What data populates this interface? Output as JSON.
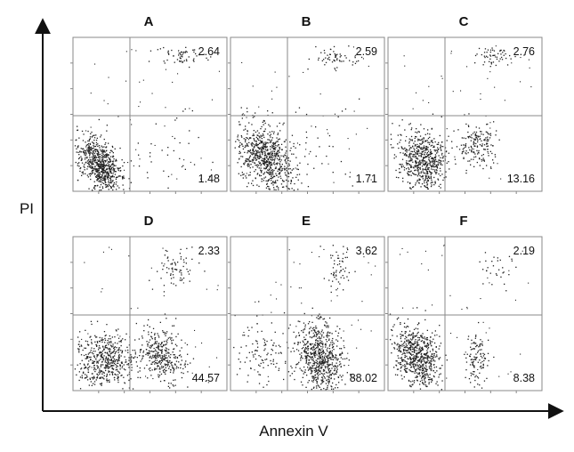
{
  "chart_data": {
    "type": "scatter",
    "xlabel": "Annexin V",
    "ylabel": "PI",
    "panels": [
      {
        "label": "A",
        "upper_right": "2.64",
        "lower_right": "1.48"
      },
      {
        "label": "B",
        "upper_right": "2.59",
        "lower_right": "1.71"
      },
      {
        "label": "C",
        "upper_right": "2.76",
        "lower_right": "13.16"
      },
      {
        "label": "D",
        "upper_right": "2.33",
        "lower_right": "44.57"
      },
      {
        "label": "E",
        "upper_right": "3.62",
        "lower_right": "88.02"
      },
      {
        "label": "F",
        "upper_right": "2.19",
        "lower_right": "8.38"
      }
    ]
  }
}
